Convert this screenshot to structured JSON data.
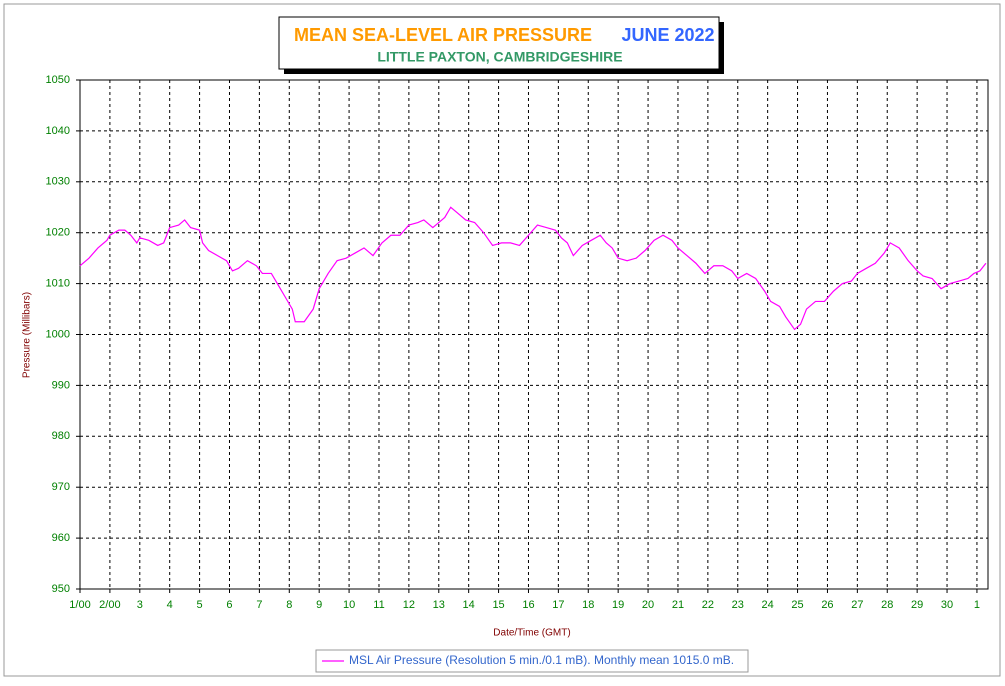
{
  "chart_data": {
    "type": "line",
    "title": "MEAN SEA-LEVEL AIR PRESSURE",
    "title_period": "JUNE 2022",
    "subtitle": "LITTLE PAXTON, CAMBRIDGESHIRE",
    "y_label": "Pressure (Millibars)",
    "x_label": "Date/Time (GMT)",
    "xlim": [
      1,
      31.37
    ],
    "ylim": [
      950,
      1050
    ],
    "yticks": [
      950,
      960,
      970,
      980,
      990,
      1000,
      1010,
      1020,
      1030,
      1040,
      1050
    ],
    "xticks": [
      {
        "value": 1,
        "label": "1/00"
      },
      {
        "value": 2,
        "label": "2/00"
      },
      3,
      4,
      5,
      6,
      7,
      8,
      9,
      10,
      11,
      12,
      13,
      14,
      15,
      16,
      17,
      18,
      19,
      20,
      21,
      22,
      23,
      24,
      25,
      26,
      27,
      28,
      29,
      30,
      {
        "value": 31,
        "label": "1"
      }
    ],
    "grid": true,
    "legend": "bottom",
    "x": [
      1.0,
      1.3,
      1.6,
      1.9,
      2.0,
      2.3,
      2.5,
      2.7,
      2.9,
      3.0,
      3.3,
      3.6,
      3.8,
      4.0,
      4.3,
      4.5,
      4.7,
      5.0,
      5.1,
      5.3,
      5.6,
      5.9,
      6.1,
      6.3,
      6.6,
      6.9,
      7.1,
      7.4,
      7.6,
      7.9,
      8.1,
      8.2,
      8.5,
      8.8,
      9.0,
      9.3,
      9.6,
      9.9,
      10.2,
      10.5,
      10.8,
      11.1,
      11.4,
      11.7,
      12.0,
      12.3,
      12.5,
      12.8,
      13.0,
      13.2,
      13.4,
      13.6,
      13.9,
      14.2,
      14.5,
      14.8,
      15.1,
      15.4,
      15.7,
      16.0,
      16.3,
      16.6,
      16.9,
      17.1,
      17.3,
      17.5,
      17.8,
      18.1,
      18.4,
      18.6,
      18.8,
      19.0,
      19.3,
      19.6,
      19.9,
      20.2,
      20.5,
      20.8,
      21.0,
      21.3,
      21.6,
      21.9,
      22.2,
      22.5,
      22.8,
      23.0,
      23.3,
      23.6,
      23.9,
      24.1,
      24.4,
      24.6,
      24.9,
      25.1,
      25.3,
      25.6,
      25.9,
      26.2,
      26.5,
      26.8,
      27.0,
      27.3,
      27.6,
      27.9,
      28.1,
      28.4,
      28.7,
      29.0,
      29.2,
      29.5,
      29.8,
      30.1,
      30.4,
      30.7,
      30.9,
      31.1,
      31.3
    ],
    "series": [
      {
        "name": "MSL Air Pressure (Resolution 5 min./0.1 mB). Monthly mean 1015.0 mB.",
        "color": "#ff00ff",
        "values": [
          1013.5,
          1015,
          1017,
          1018.5,
          1019.5,
          1020.5,
          1020.5,
          1019.5,
          1018,
          1019,
          1018.5,
          1017.5,
          1018,
          1021,
          1021.5,
          1022.5,
          1021,
          1020.5,
          1018,
          1016.5,
          1015.5,
          1014.5,
          1012.5,
          1013,
          1014.5,
          1013.5,
          1012,
          1012,
          1010,
          1007,
          1005,
          1002.5,
          1002.5,
          1005,
          1009,
          1012,
          1014.5,
          1015,
          1016,
          1017,
          1015.5,
          1018,
          1019.5,
          1019.5,
          1021.5,
          1022,
          1022.5,
          1021,
          1022,
          1023,
          1025,
          1024,
          1022.5,
          1022,
          1020,
          1017.5,
          1018,
          1018,
          1017.5,
          1019.5,
          1021.5,
          1021,
          1020.5,
          1019,
          1018,
          1015.5,
          1017.5,
          1018.5,
          1019.5,
          1018,
          1017,
          1015,
          1014.5,
          1015,
          1016.5,
          1018.5,
          1019.5,
          1018.5,
          1017,
          1015.5,
          1014,
          1012,
          1013.5,
          1013.5,
          1012.5,
          1011,
          1012,
          1011,
          1008.5,
          1006.5,
          1005.5,
          1003.5,
          1001,
          1002,
          1005,
          1006.5,
          1006.5,
          1008.5,
          1010,
          1010.5,
          1012,
          1013,
          1014,
          1016,
          1018,
          1017,
          1014.5,
          1012.5,
          1011.5,
          1011,
          1009,
          1010,
          1010.5,
          1011,
          1012,
          1012.5,
          1014
        ]
      }
    ]
  }
}
